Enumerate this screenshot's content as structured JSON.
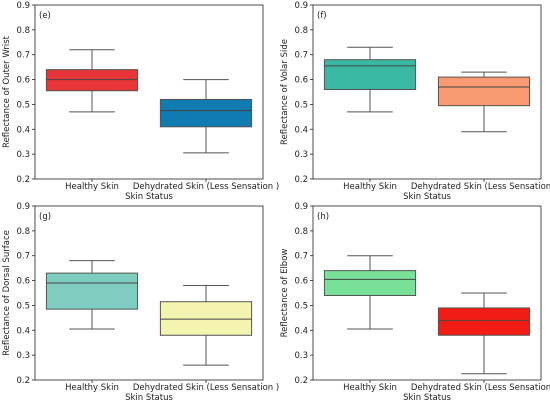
{
  "chart_data": [
    {
      "type": "box",
      "tag": "(e)",
      "xlabel": "Skin Status",
      "ylabel": "Reflectance of Outer Wrist",
      "ylim": [
        0.2,
        0.9
      ],
      "yticks": [
        "0.2",
        "0.3",
        "0.4",
        "0.5",
        "0.6",
        "0.7",
        "0.8",
        "0.9"
      ],
      "categories": [
        "Healthy Skin",
        "Dehydrated Skin (Less Sensation )"
      ],
      "boxes": [
        {
          "whislo": 0.47,
          "q1": 0.555,
          "med": 0.6,
          "q3": 0.64,
          "whishi": 0.72,
          "color": "#e8353a"
        },
        {
          "whislo": 0.305,
          "q1": 0.41,
          "med": 0.475,
          "q3": 0.52,
          "whishi": 0.6,
          "color": "#0f7bb0"
        }
      ]
    },
    {
      "type": "box",
      "tag": "(f)",
      "xlabel": "Skin Status",
      "ylabel": "Reflectance of Volar Side",
      "ylim": [
        0.2,
        0.9
      ],
      "yticks": [
        "0.2",
        "0.3",
        "0.4",
        "0.5",
        "0.6",
        "0.7",
        "0.8",
        "0.9"
      ],
      "categories": [
        "Healthy Skin",
        "Dehydrated Skin (Less Sensation )"
      ],
      "boxes": [
        {
          "whislo": 0.47,
          "q1": 0.56,
          "med": 0.655,
          "q3": 0.68,
          "whishi": 0.73,
          "color": "#3bb8a3"
        },
        {
          "whislo": 0.39,
          "q1": 0.495,
          "med": 0.57,
          "q3": 0.61,
          "whishi": 0.63,
          "color": "#f99a73"
        }
      ]
    },
    {
      "type": "box",
      "tag": "(g)",
      "xlabel": "Skin Status",
      "ylabel": "Reflectance of Dorsal Surface",
      "ylim": [
        0.2,
        0.9
      ],
      "yticks": [
        "0.2",
        "0.3",
        "0.4",
        "0.5",
        "0.6",
        "0.7",
        "0.8",
        "0.9"
      ],
      "categories": [
        "Healthy Skin",
        "Dehydrated Skin (Less Sensation )"
      ],
      "boxes": [
        {
          "whislo": 0.405,
          "q1": 0.485,
          "med": 0.59,
          "q3": 0.63,
          "whishi": 0.68,
          "color": "#7fccc0"
        },
        {
          "whislo": 0.26,
          "q1": 0.38,
          "med": 0.445,
          "q3": 0.515,
          "whishi": 0.58,
          "color": "#f5f3b0"
        }
      ]
    },
    {
      "type": "box",
      "tag": "(h)",
      "xlabel": "Skin Status",
      "ylabel": "Reflectance of Elbow",
      "ylim": [
        0.2,
        0.9
      ],
      "yticks": [
        "0.2",
        "0.3",
        "0.4",
        "0.5",
        "0.6",
        "0.7",
        "0.8",
        "0.9"
      ],
      "categories": [
        "Healthy Skin",
        "Dehydrated Skin (Less Sensation )"
      ],
      "boxes": [
        {
          "whislo": 0.405,
          "q1": 0.54,
          "med": 0.605,
          "q3": 0.64,
          "whishi": 0.7,
          "color": "#79e09a"
        },
        {
          "whislo": 0.225,
          "q1": 0.38,
          "med": 0.44,
          "q3": 0.49,
          "whishi": 0.55,
          "color": "#f21c14"
        }
      ]
    }
  ]
}
